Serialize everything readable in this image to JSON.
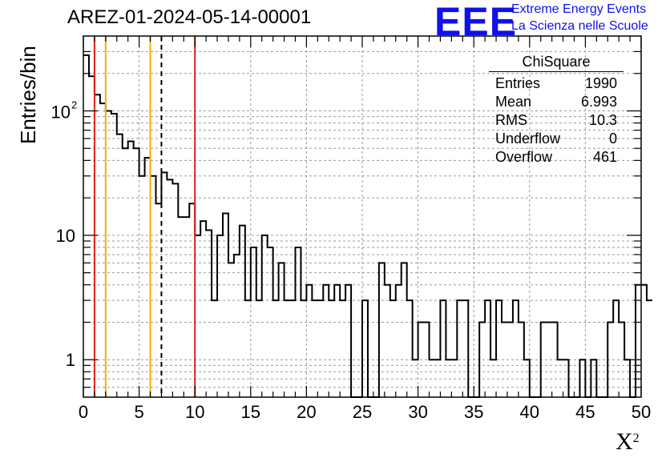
{
  "title": "AREZ-01-2024-05-14-00001",
  "logo": {
    "mark": "EEE",
    "line1": "Extreme Energy Events",
    "line2": "La Scienza nelle Scuole",
    "color": "#1010ee"
  },
  "stats": {
    "title": "ChiSquare",
    "rows": [
      {
        "label": "Entries",
        "value": "1990"
      },
      {
        "label": "Mean",
        "value": "6.993"
      },
      {
        "label": "RMS",
        "value": "10.3"
      },
      {
        "label": "Underflow",
        "value": "0"
      },
      {
        "label": "Overflow",
        "value": "461"
      }
    ]
  },
  "chart_data": {
    "type": "histogram",
    "ylabel": "Entries/bin",
    "xlabel": "X",
    "xlabel_superscript": "2",
    "xlim": [
      0,
      50
    ],
    "ylim": [
      0.5,
      400
    ],
    "yscale": "log",
    "grid": true,
    "bin_width": 0.5,
    "x_ticks": [
      "0",
      "5",
      "10",
      "15",
      "20",
      "25",
      "30",
      "35",
      "40",
      "45",
      "50"
    ],
    "y_ticks": [
      {
        "value": 1,
        "label": "1"
      },
      {
        "value": 10,
        "label": "10"
      },
      {
        "value": 100,
        "label": "10",
        "exp": "2"
      }
    ],
    "values": [
      280,
      190,
      135,
      115,
      100,
      95,
      65,
      50,
      57,
      50,
      30,
      42,
      30,
      18,
      32,
      28,
      26,
      14,
      14,
      18,
      10,
      13,
      11,
      3,
      10,
      15,
      6,
      7,
      12,
      3,
      8,
      3,
      10,
      8,
      3,
      6,
      3,
      3,
      8,
      3,
      4,
      3,
      3,
      4,
      3,
      4,
      3,
      4,
      0,
      0,
      3,
      0,
      0,
      6,
      4,
      3,
      4,
      6,
      3,
      1,
      2,
      2,
      1,
      1,
      3,
      1,
      1,
      3,
      3,
      0,
      0,
      2,
      3,
      1,
      3,
      2,
      2,
      3,
      2,
      1,
      0,
      0,
      2,
      2,
      2,
      1,
      1,
      0,
      0,
      1,
      0,
      1,
      0,
      0,
      2,
      3,
      2,
      1,
      0,
      4,
      4,
      3
    ],
    "vertical_lines": [
      {
        "x": 1,
        "color": "#dd2020",
        "style": "solid"
      },
      {
        "x": 2,
        "color": "#f0b000",
        "style": "solid"
      },
      {
        "x": 6,
        "color": "#f0b000",
        "style": "solid"
      },
      {
        "x": 7,
        "color": "#000000",
        "style": "dashed"
      },
      {
        "x": 10,
        "color": "#dd2020",
        "style": "solid"
      }
    ]
  }
}
